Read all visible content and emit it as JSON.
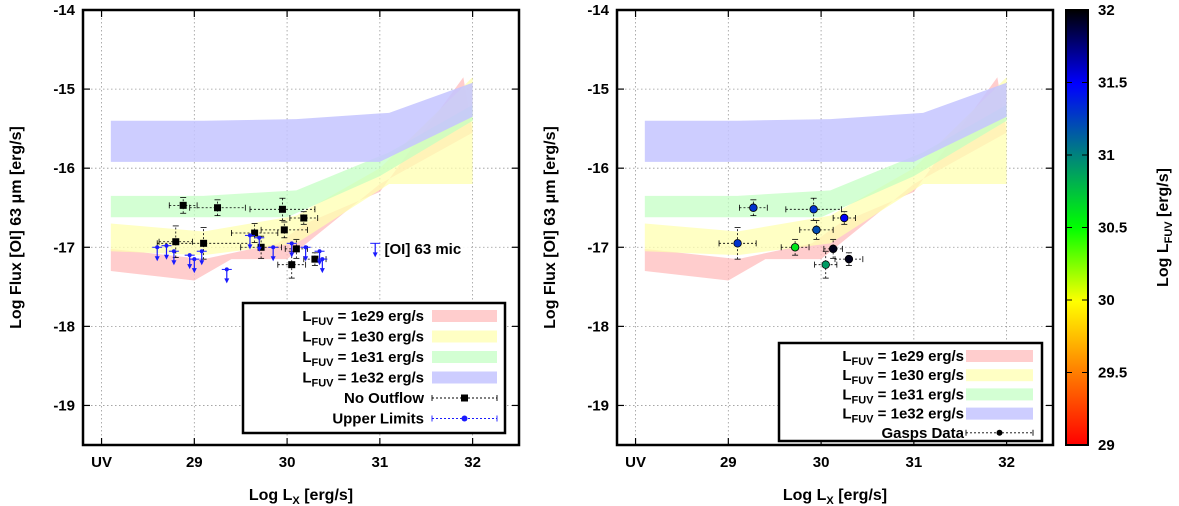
{
  "chart_data": [
    {
      "type": "scatter",
      "xlabel": {
        "main": "Log L",
        "sub": "X",
        "tail": " [erg/s]"
      },
      "ylabel": "Log Flux [OI] 63 μm [erg/s]",
      "xlim": [
        27.8,
        32.5
      ],
      "ylim": [
        -19.5,
        -14
      ],
      "x_ticks": [
        {
          "x": 28,
          "label": "UV"
        },
        {
          "x": 29,
          "label": "29"
        },
        {
          "x": 30,
          "label": "30"
        },
        {
          "x": 31,
          "label": "31"
        },
        {
          "x": 32,
          "label": "32"
        }
      ],
      "y_ticks": [
        {
          "y": -14,
          "label": "-14"
        },
        {
          "y": -15,
          "label": "-15"
        },
        {
          "y": -16,
          "label": "-16"
        },
        {
          "y": -17,
          "label": "-17"
        },
        {
          "y": -18,
          "label": "-18"
        },
        {
          "y": -19,
          "label": "-19"
        }
      ],
      "grid": true,
      "legend_position": "bottom-right",
      "bands": [
        {
          "name": "L_FUV = 1e29 erg/s",
          "color": "#ffbcbc",
          "opacity": 0.75,
          "upper": [
            [
              28.1,
              -17.02
            ],
            [
              29.1,
              -17.15
            ],
            [
              29.9,
              -16.95
            ],
            [
              30.2,
              -16.7
            ],
            [
              31.0,
              -16.3
            ],
            [
              31.9,
              -14.85
            ]
          ],
          "lower": [
            [
              28.1,
              -17.3
            ],
            [
              29.0,
              -17.42
            ],
            [
              29.4,
              -17.15
            ],
            [
              30.0,
              -17.15
            ],
            [
              31.0,
              -16.2
            ],
            [
              32.0,
              -15.55
            ]
          ]
        },
        {
          "name": "L_FUV = 1e30 erg/s",
          "color": "#ffffb0",
          "opacity": 0.75,
          "upper": [
            [
              28.1,
              -16.7
            ],
            [
              29.1,
              -16.8
            ],
            [
              30.1,
              -16.6
            ],
            [
              31.0,
              -16.0
            ],
            [
              32.0,
              -14.85
            ]
          ],
          "lower": [
            [
              28.1,
              -17.05
            ],
            [
              29.1,
              -17.1
            ],
            [
              30.1,
              -16.95
            ],
            [
              31.1,
              -16.2
            ],
            [
              32.0,
              -16.2
            ]
          ]
        },
        {
          "name": "L_FUV = 1e31 erg/s",
          "color": "#c0ffc0",
          "opacity": 0.7,
          "upper": [
            [
              28.1,
              -16.35
            ],
            [
              29.1,
              -16.35
            ],
            [
              30.1,
              -16.28
            ],
            [
              31.1,
              -15.8
            ],
            [
              32.0,
              -15.2
            ]
          ],
          "lower": [
            [
              28.1,
              -16.62
            ],
            [
              29.0,
              -16.62
            ],
            [
              30.0,
              -16.62
            ],
            [
              31.0,
              -16.1
            ],
            [
              32.0,
              -15.4
            ]
          ]
        },
        {
          "name": "L_FUV = 1e32 erg/s",
          "color": "#c4c4ff",
          "opacity": 0.85,
          "upper": [
            [
              28.1,
              -15.4
            ],
            [
              29.1,
              -15.4
            ],
            [
              30.1,
              -15.38
            ],
            [
              31.1,
              -15.3
            ],
            [
              32.0,
              -14.92
            ]
          ],
          "lower": [
            [
              28.1,
              -15.92
            ],
            [
              29.1,
              -15.92
            ],
            [
              30.1,
              -15.92
            ],
            [
              31.0,
              -15.92
            ],
            [
              32.0,
              -15.35
            ]
          ]
        }
      ],
      "series": [
        {
          "name": "No Outflow",
          "color": "#000000",
          "marker": "square",
          "points": [
            {
              "x": 28.88,
              "y": -16.47,
              "xerr": 0.15,
              "yerr": 0.1
            },
            {
              "x": 29.25,
              "y": -16.5,
              "xerr": 0.3,
              "yerr": 0.1
            },
            {
              "x": 29.95,
              "y": -16.52,
              "xerr": 0.35,
              "yerr": 0.14
            },
            {
              "x": 30.18,
              "y": -16.63,
              "xerr": 0.15,
              "yerr": 0.08
            },
            {
              "x": 29.65,
              "y": -16.82,
              "xerr": 0.25,
              "yerr": 0.12
            },
            {
              "x": 29.97,
              "y": -16.78,
              "xerr": 0.25,
              "yerr": 0.1
            },
            {
              "x": 28.8,
              "y": -16.93,
              "xerr": 0.18,
              "yerr": 0.2
            },
            {
              "x": 29.1,
              "y": -16.95,
              "xerr": 0.5,
              "yerr": 0.2
            },
            {
              "x": 29.72,
              "y": -17.0,
              "xerr": 0.22,
              "yerr": 0.14
            },
            {
              "x": 30.1,
              "y": -17.02,
              "xerr": 0.12,
              "yerr": 0.12
            },
            {
              "x": 30.05,
              "y": -17.22,
              "xerr": 0.15,
              "yerr": 0.17
            },
            {
              "x": 30.3,
              "y": -17.15,
              "xerr": 0.12,
              "yerr": 0.08
            }
          ]
        },
        {
          "name": "Upper Limits",
          "color": "#1a1aff",
          "marker": "arrow",
          "points": [
            {
              "x": 28.6,
              "y": -17.0
            },
            {
              "x": 28.7,
              "y": -16.98
            },
            {
              "x": 28.78,
              "y": -17.05
            },
            {
              "x": 28.95,
              "y": -17.1
            },
            {
              "x": 29.0,
              "y": -17.15
            },
            {
              "x": 29.08,
              "y": -17.05
            },
            {
              "x": 29.35,
              "y": -17.28
            },
            {
              "x": 29.6,
              "y": -16.85
            },
            {
              "x": 29.7,
              "y": -16.88
            },
            {
              "x": 29.85,
              "y": -17.0
            },
            {
              "x": 30.05,
              "y": -16.95
            },
            {
              "x": 30.2,
              "y": -17.0
            },
            {
              "x": 30.35,
              "y": -17.05
            },
            {
              "x": 30.38,
              "y": -17.15
            }
          ]
        },
        {
          "name": "[OI] 63 mic",
          "color": "#1a1aff",
          "marker": "arrow",
          "points": [
            {
              "x": 30.95,
              "y": -16.95
            }
          ]
        }
      ],
      "annotations": [
        {
          "text": "[OI] 63 mic",
          "x": 31.05,
          "y": -17.02
        }
      ]
    },
    {
      "type": "scatter",
      "xlabel": {
        "main": "Log L",
        "sub": "X",
        "tail": " [erg/s]"
      },
      "ylabel": "Log Flux [OI] 63 μm [erg/s]",
      "xlim": [
        27.8,
        32.5
      ],
      "ylim": [
        -19.5,
        -14
      ],
      "x_ticks": [
        {
          "x": 28,
          "label": "UV"
        },
        {
          "x": 29,
          "label": "29"
        },
        {
          "x": 30,
          "label": "30"
        },
        {
          "x": 31,
          "label": "31"
        },
        {
          "x": 32,
          "label": "32"
        }
      ],
      "y_ticks": [
        {
          "y": -14,
          "label": "-14"
        },
        {
          "y": -15,
          "label": "-15"
        },
        {
          "y": -16,
          "label": "-16"
        },
        {
          "y": -17,
          "label": "-17"
        },
        {
          "y": -18,
          "label": "-18"
        },
        {
          "y": -19,
          "label": "-19"
        }
      ],
      "grid": true,
      "legend_position": "bottom-right",
      "series": [
        {
          "name": "Gasps Data",
          "color": "#000000",
          "marker": "circle",
          "points": [
            {
              "x": 29.27,
              "y": -16.5,
              "xerr": 0.15,
              "yerr": 0.1,
              "c": 31.3
            },
            {
              "x": 29.92,
              "y": -16.52,
              "xerr": 0.3,
              "yerr": 0.14,
              "c": 31.3
            },
            {
              "x": 30.25,
              "y": -16.63,
              "xerr": 0.12,
              "yerr": 0.08,
              "c": 31.5
            },
            {
              "x": 29.95,
              "y": -16.78,
              "xerr": 0.18,
              "yerr": 0.12,
              "c": 31.2
            },
            {
              "x": 29.1,
              "y": -16.95,
              "xerr": 0.2,
              "yerr": 0.2,
              "c": 31.3
            },
            {
              "x": 29.72,
              "y": -17.0,
              "xerr": 0.15,
              "yerr": 0.1,
              "c": 30.6
            },
            {
              "x": 30.13,
              "y": -17.02,
              "xerr": 0.1,
              "yerr": 0.12,
              "c": 31.95
            },
            {
              "x": 30.05,
              "y": -17.22,
              "xerr": 0.12,
              "yerr": 0.17,
              "c": 30.9
            },
            {
              "x": 30.3,
              "y": -17.15,
              "xerr": 0.15,
              "yerr": 0.08,
              "c": 31.95
            }
          ]
        }
      ]
    }
  ],
  "colorbar": {
    "label": {
      "main": "Log L",
      "sub": "FUV",
      "tail": " [erg/s]"
    },
    "range": [
      29,
      32
    ],
    "ticks": [
      "29",
      "29.5",
      "30",
      "30.5",
      "31",
      "31.5",
      "32"
    ],
    "stops": [
      {
        "v": 0,
        "color": "#ff0000"
      },
      {
        "v": 0.17,
        "color": "#ff8000"
      },
      {
        "v": 0.33,
        "color": "#ffff00"
      },
      {
        "v": 0.5,
        "color": "#00ff00"
      },
      {
        "v": 0.67,
        "color": "#008080"
      },
      {
        "v": 0.83,
        "color": "#0000ff"
      },
      {
        "v": 1,
        "color": "#000000"
      }
    ]
  },
  "legends": [
    {
      "items": [
        {
          "pre": "L",
          "sub": "FUV",
          "post": " = 1e29 erg/s"
        },
        {
          "pre": "L",
          "sub": "FUV",
          "post": " = 1e30 erg/s"
        },
        {
          "pre": "L",
          "sub": "FUV",
          "post": " = 1e31 erg/s"
        },
        {
          "pre": "L",
          "sub": "FUV",
          "post": " = 1e32 erg/s"
        },
        {
          "pre": "No Outflow",
          "sub": "",
          "post": ""
        },
        {
          "pre": "Upper Limits",
          "sub": "",
          "post": ""
        }
      ]
    },
    {
      "items": [
        {
          "pre": "L",
          "sub": "FUV",
          "post": " = 1e29 erg/s"
        },
        {
          "pre": "L",
          "sub": "FUV",
          "post": " = 1e30 erg/s"
        },
        {
          "pre": "L",
          "sub": "FUV",
          "post": " = 1e31 erg/s"
        },
        {
          "pre": "L",
          "sub": "FUV",
          "post": " = 1e32 erg/s"
        },
        {
          "pre": "Gasps Data",
          "sub": "",
          "post": ""
        }
      ]
    }
  ]
}
